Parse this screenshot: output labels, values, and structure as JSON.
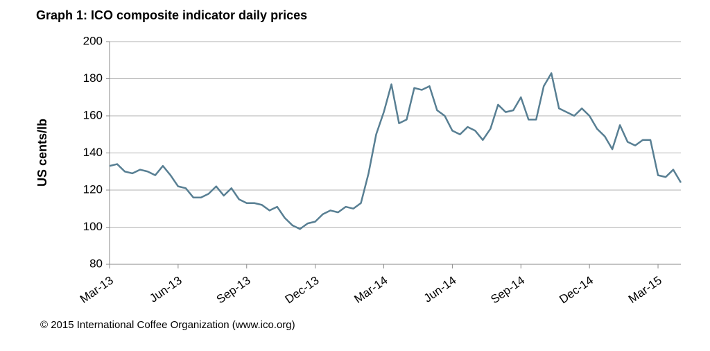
{
  "chart_data": {
    "type": "line",
    "title": "Graph 1: ICO composite indicator daily prices",
    "y_label": "US cents/lb",
    "footer": "© 2015 International Coffee Organization (www.ico.org)",
    "categories": [
      "Mar-13",
      null,
      null,
      null,
      null,
      null,
      null,
      null,
      null,
      "Jun-13",
      null,
      null,
      null,
      null,
      null,
      null,
      null,
      null,
      "Sep-13",
      null,
      null,
      null,
      null,
      null,
      null,
      null,
      null,
      "Dec-13",
      null,
      null,
      null,
      null,
      null,
      null,
      null,
      null,
      "Mar-14",
      null,
      null,
      null,
      null,
      null,
      null,
      null,
      null,
      "Jun-14",
      null,
      null,
      null,
      null,
      null,
      null,
      null,
      null,
      "Sep-14",
      null,
      null,
      null,
      null,
      null,
      null,
      null,
      null,
      "Dec-14",
      null,
      null,
      null,
      null,
      null,
      null,
      null,
      null,
      "Mar-15",
      null,
      null,
      null
    ],
    "series": [
      {
        "name": "ICO composite indicator",
        "color": "#587f93",
        "values": [
          133,
          134,
          130,
          129,
          131,
          130,
          128,
          133,
          128,
          122,
          121,
          116,
          116,
          118,
          122,
          117,
          121,
          115,
          113,
          113,
          112,
          109,
          111,
          105,
          101,
          99,
          102,
          103,
          107,
          109,
          108,
          111,
          110,
          113,
          129,
          150,
          162,
          177,
          156,
          158,
          175,
          174,
          176,
          163,
          160,
          152,
          150,
          154,
          152,
          147,
          153,
          166,
          162,
          163,
          170,
          158,
          158,
          176,
          183,
          164,
          162,
          160,
          164,
          160,
          153,
          149,
          142,
          155,
          146,
          144,
          147,
          147,
          128,
          127,
          131,
          124
        ]
      }
    ],
    "ylim": [
      80,
      200
    ],
    "yticks": [
      80,
      100,
      120,
      140,
      160,
      180,
      200
    ],
    "grid": true
  }
}
